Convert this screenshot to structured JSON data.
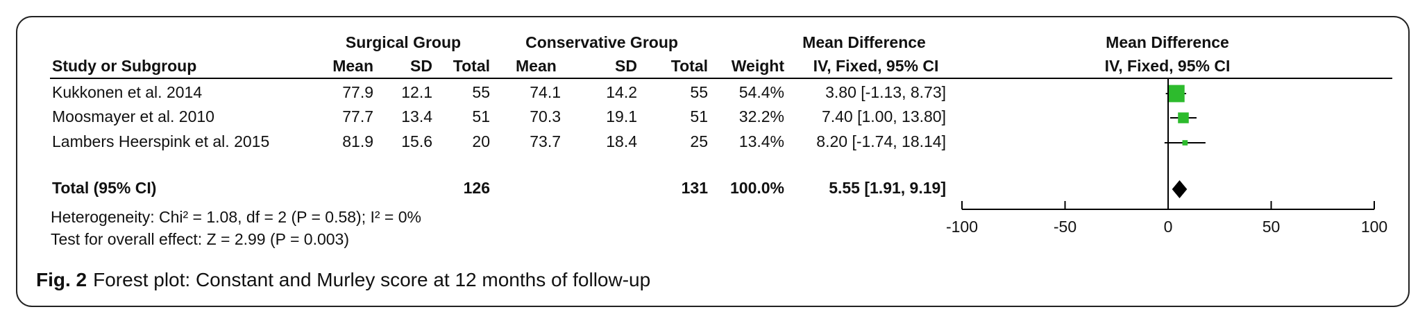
{
  "chart_data": {
    "type": "forest",
    "group_headers": {
      "surgical": "Surgical Group",
      "conservative": "Conservative Group",
      "table_effect": "Mean Difference",
      "plot_effect": "Mean Difference"
    },
    "columns": {
      "study": "Study or Subgroup",
      "mean1": "Mean",
      "sd1": "SD",
      "total1": "Total",
      "mean2": "Mean",
      "sd2": "SD",
      "total2": "Total",
      "weight": "Weight",
      "ci_table": "IV, Fixed, 95% CI",
      "ci_plot": "IV, Fixed, 95% CI"
    },
    "studies": [
      {
        "name": "Kukkonen et al. 2014",
        "mean1": 77.9,
        "sd1": 12.1,
        "total1": 55,
        "mean2": 74.1,
        "sd2": 14.2,
        "total2": 55,
        "weight": 54.4,
        "weight_label": "54.4%",
        "md": 3.8,
        "lower": -1.13,
        "upper": 8.73,
        "ci_label": "3.80 [-1.13, 8.73]"
      },
      {
        "name": "Moosmayer et al. 2010",
        "mean1": 77.7,
        "sd1": 13.4,
        "total1": 51,
        "mean2": 70.3,
        "sd2": 19.1,
        "total2": 51,
        "weight": 32.2,
        "weight_label": "32.2%",
        "md": 7.4,
        "lower": 1.0,
        "upper": 13.8,
        "ci_label": "7.40 [1.00, 13.80]"
      },
      {
        "name": "Lambers Heerspink et al. 2015",
        "mean1": 81.9,
        "sd1": 15.6,
        "total1": 20,
        "mean2": 73.7,
        "sd2": 18.4,
        "total2": 25,
        "weight": 13.4,
        "weight_label": "13.4%",
        "md": 8.2,
        "lower": -1.74,
        "upper": 18.14,
        "ci_label": "8.20 [-1.74, 18.14]"
      }
    ],
    "total": {
      "name": "Total (95% CI)",
      "total1": 126,
      "total2": 131,
      "weight_label": "100.0%",
      "md": 5.55,
      "lower": 1.91,
      "upper": 9.19,
      "ci_label": "5.55 [1.91, 9.19]"
    },
    "heterogeneity": "Heterogeneity: Chi² = 1.08, df = 2 (P = 0.58); I² = 0%",
    "overall_effect": "Test for overall effect: Z = 2.99 (P = 0.003)",
    "xlim": [
      -100,
      100
    ],
    "xticks": [
      -100,
      -50,
      0,
      50,
      100
    ],
    "box_color": "#2dbb2d",
    "line_color": "#000000"
  },
  "caption": {
    "label": "Fig. 2",
    "text": "Forest plot: Constant and Murley score at 12 months of follow-up"
  }
}
